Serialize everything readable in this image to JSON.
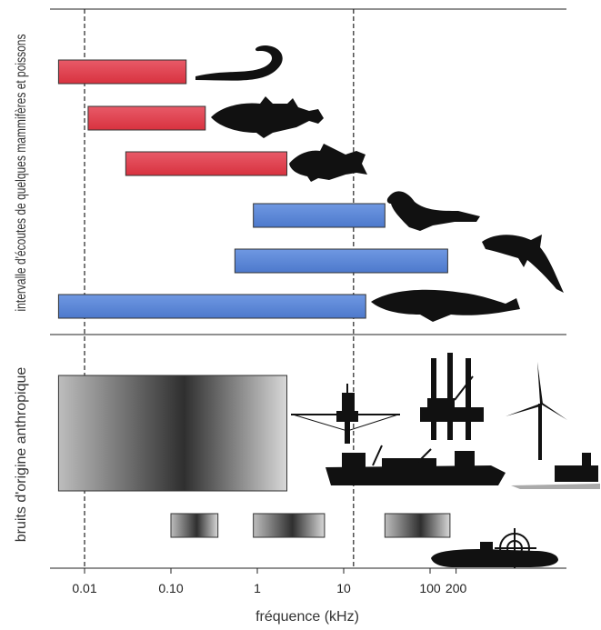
{
  "chart_data": {
    "type": "bar",
    "xlabel": "fréquence (kHz)",
    "xscale": "log",
    "x_ticks": [
      {
        "value": 0.01,
        "label": "0.01"
      },
      {
        "value": 0.1,
        "label": "0.10"
      },
      {
        "value": 1,
        "label": "1"
      },
      {
        "value": 10,
        "label": "10"
      },
      {
        "value": 100,
        "label": "100"
      },
      {
        "value": 200,
        "label": "200"
      }
    ],
    "reference_lines": [
      0.01,
      13
    ],
    "colors": {
      "fish": "#e0404f",
      "mammal": "#5b86d6",
      "noise_dark": "#2a2a2a",
      "silhouette": "#111111"
    },
    "sections": [
      {
        "label": "intervalle d'écoutes de quelques mammifères et poissons",
        "ranges": [
          {
            "icon": "eel-icon",
            "group": "fish",
            "from": 0.005,
            "to": 0.15
          },
          {
            "icon": "cod-icon",
            "group": "fish",
            "from": 0.011,
            "to": 0.25
          },
          {
            "icon": "perch-icon",
            "group": "fish",
            "from": 0.03,
            "to": 2.2
          },
          {
            "icon": "seal-icon",
            "group": "mammal",
            "from": 0.9,
            "to": 30
          },
          {
            "icon": "dolphin-icon",
            "group": "mammal",
            "from": 0.55,
            "to": 160
          },
          {
            "icon": "whale-icon",
            "group": "mammal",
            "from": 0.005,
            "to": 18
          }
        ]
      },
      {
        "label": "bruits d'origine anthropique",
        "ranges": [
          {
            "icons": [
              "drilling-rig-icon",
              "oil-platform-icon",
              "wind-turbine-icon",
              "cargo-ship-icon",
              "dredger-icon"
            ],
            "from": 0.005,
            "to": 2.2
          },
          {
            "from": 0.1,
            "to": 0.35
          },
          {
            "from": 0.9,
            "to": 6
          },
          {
            "from": 30,
            "to": 170,
            "icons": [
              "sonar-icon",
              "submarine-icon"
            ]
          }
        ]
      }
    ]
  }
}
